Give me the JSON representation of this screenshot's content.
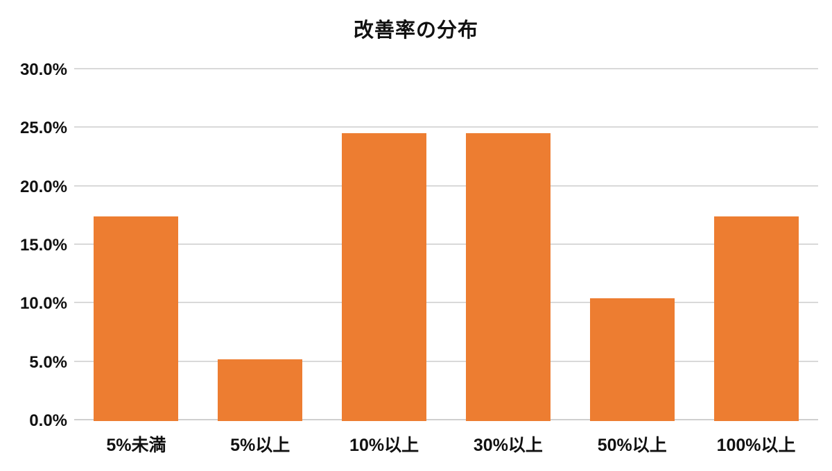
{
  "chart_data": {
    "type": "bar",
    "title": "改善率の分布",
    "categories": [
      "5%未満",
      "5%以上",
      "10%以上",
      "30%以上",
      "50%以上",
      "100%以上"
    ],
    "values": [
      17.5,
      5.3,
      24.6,
      24.6,
      10.5,
      17.5
    ],
    "value_unit": "%",
    "xlabel": "",
    "ylabel": "",
    "ylim": [
      0,
      30
    ],
    "y_tick_values": [
      0,
      5,
      10,
      15,
      20,
      25,
      30
    ],
    "y_tick_labels": [
      "0.0%",
      "5.0%",
      "10.0%",
      "15.0%",
      "20.0%",
      "25.0%",
      "30.0%"
    ],
    "grid": "horizontal",
    "legend_position": "none",
    "bar_color": "#ED7D31",
    "gridline_color": "#D9D9D9",
    "axis_line_color": "#CFCFCF",
    "text_color": "#111111",
    "background_color": "#FFFFFF"
  }
}
